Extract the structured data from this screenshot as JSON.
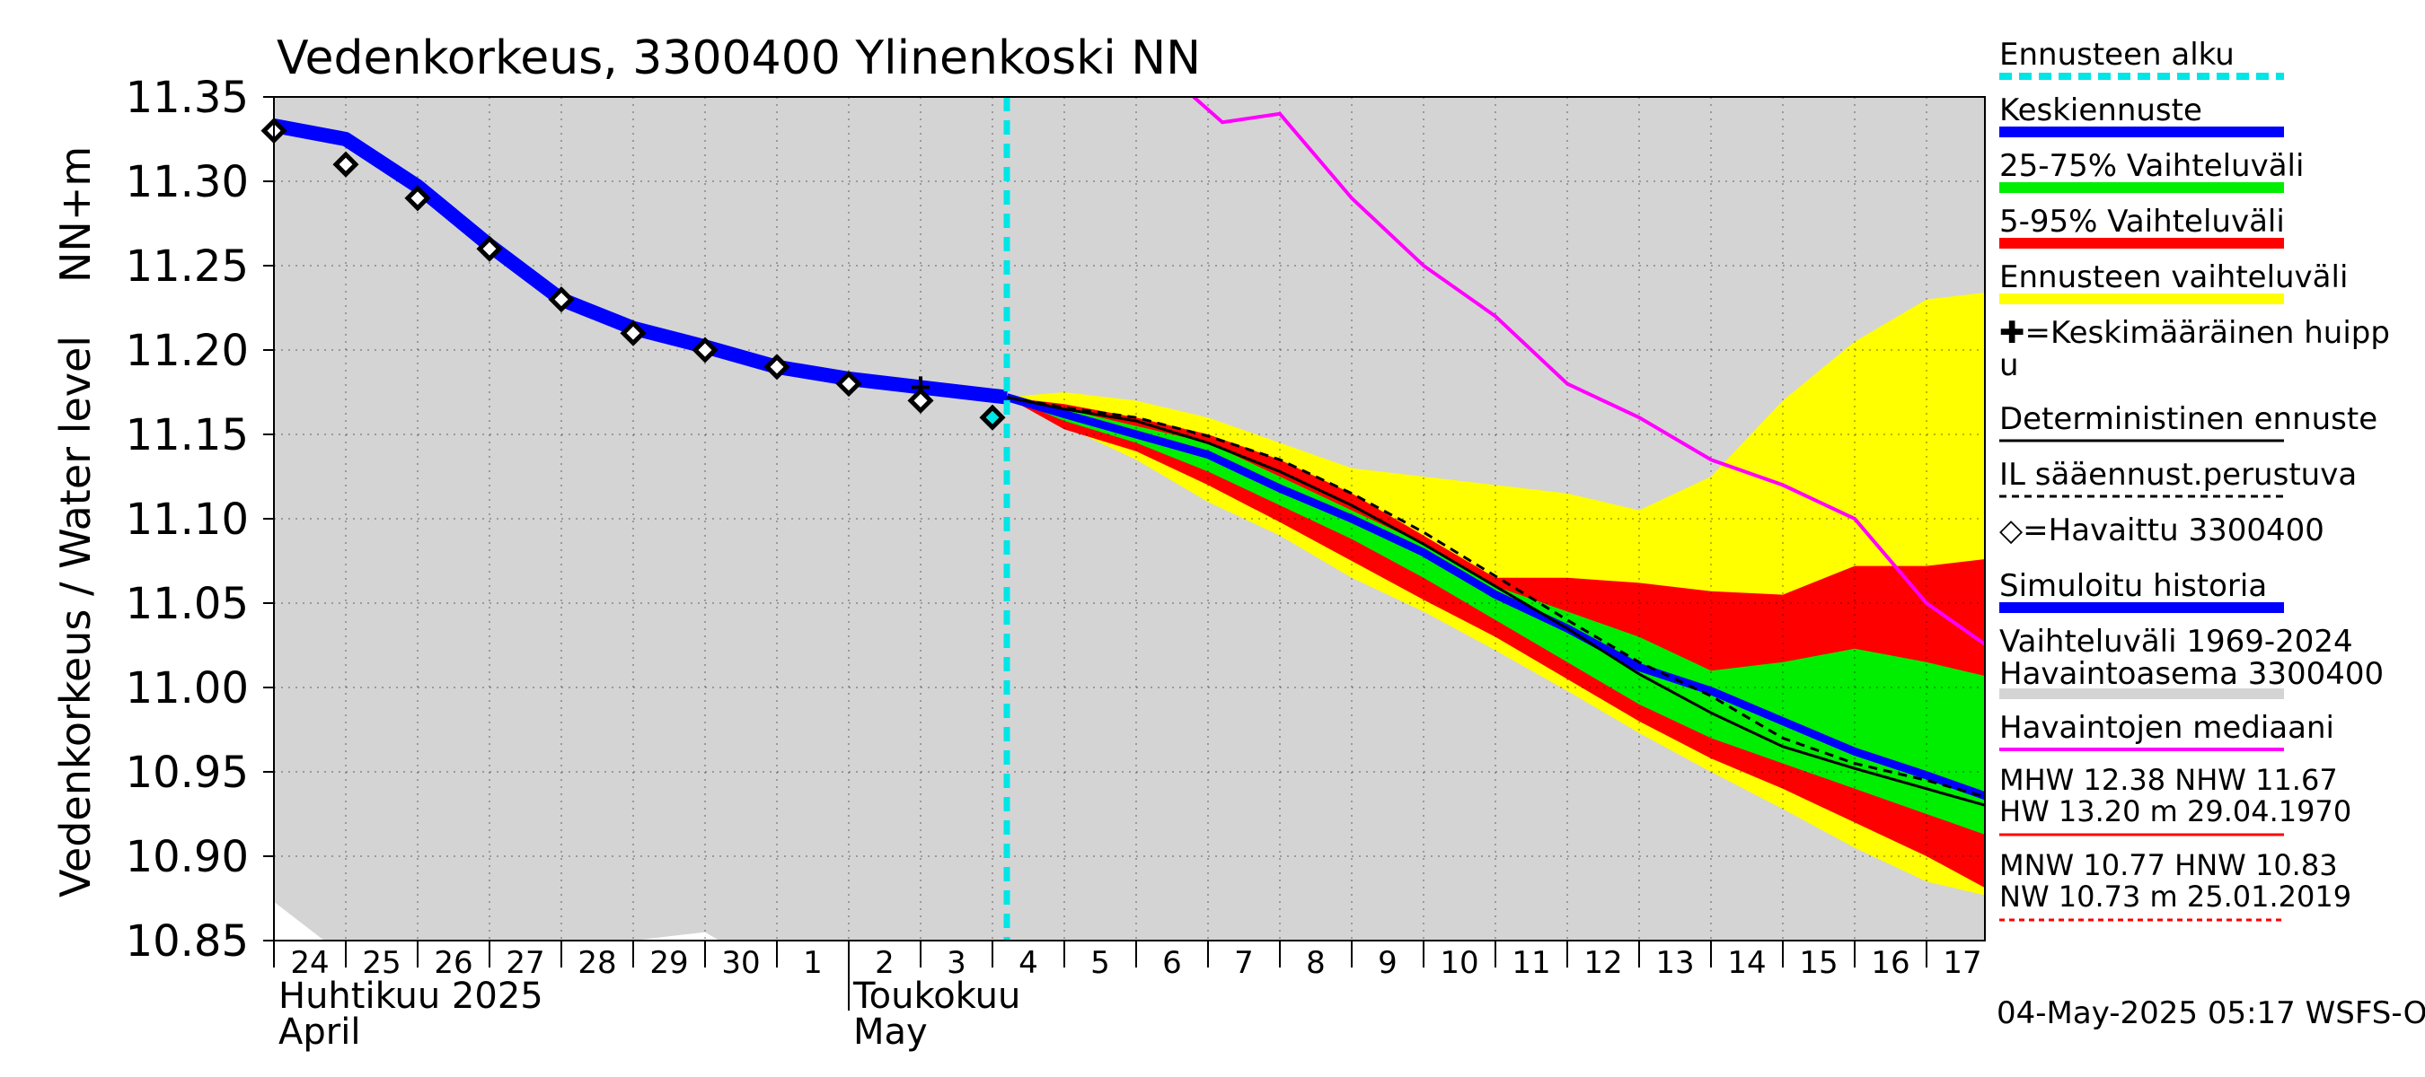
{
  "chart_data": {
    "type": "area",
    "title": "Vedenkorkeus, 3300400 Ylinenkoski NN",
    "ylabel": "Vedenkorkeus / Water level   NN+m",
    "ylabel_main": "Vedenkorkeus / Water level",
    "ylabel_unit": "NN+m",
    "ylim": [
      10.85,
      11.35
    ],
    "yticks": [
      10.85,
      10.9,
      10.95,
      11.0,
      11.05,
      11.1,
      11.15,
      11.2,
      11.25,
      11.3,
      11.35
    ],
    "ytick_labels": [
      "10.85",
      "10.90",
      "10.95",
      "11.00",
      "11.05",
      "11.10",
      "11.15",
      "11.20",
      "11.25",
      "11.30",
      "11.35"
    ],
    "x_range_days": [
      0,
      24
    ],
    "day_note": "x value 0 = 24 April 2025 00:00, 1 unit = 1 day",
    "x_tick_labels": [
      "24",
      "25",
      "26",
      "27",
      "28",
      "29",
      "30",
      "1",
      "2",
      "3",
      "4",
      "5",
      "6",
      "7",
      "8",
      "9",
      "10",
      "11",
      "12",
      "13",
      "14",
      "15",
      "16",
      "17"
    ],
    "month_labels": [
      {
        "fi": "Huhtikuu  2025",
        "en": "April",
        "day": 0
      },
      {
        "fi": "Toukokuu",
        "en": "May",
        "day": 8
      }
    ],
    "forecast_start_day": 10.2,
    "colors": {
      "history_range": "#d4d4d4",
      "forecast_range": "#ffff00",
      "range_5_95": "#ff0000",
      "range_25_75": "#00ee00",
      "mean_forecast": "#0000ff",
      "deterministic": "#000000",
      "median": "#ff00ff",
      "forecast_start": "#00e5e5"
    },
    "series": [
      {
        "name": "Vaihteluväli 1969-2024 Havaintoasema 3300400",
        "kind": "band",
        "x": [
          0,
          24
        ],
        "upper": [
          11.35,
          11.35
        ],
        "lower": [
          10.85,
          10.85
        ]
      },
      {
        "name": "Ennusteen vaihteluväli",
        "kind": "band",
        "x": [
          10.2,
          11,
          12,
          13,
          14,
          15,
          16,
          17,
          18,
          19,
          20,
          21,
          22,
          23,
          24
        ],
        "upper": [
          11.172,
          11.175,
          11.17,
          11.16,
          11.145,
          11.13,
          11.125,
          11.12,
          11.115,
          11.105,
          11.125,
          11.17,
          11.205,
          11.23,
          11.235
        ],
        "lower": [
          11.172,
          11.155,
          11.135,
          11.11,
          11.09,
          11.065,
          11.045,
          11.022,
          10.998,
          10.973,
          10.95,
          10.928,
          10.905,
          10.885,
          10.875
        ]
      },
      {
        "name": "5-95% Vaihteluväli",
        "kind": "band",
        "x": [
          10.2,
          11,
          12,
          13,
          14,
          15,
          16,
          17,
          18,
          19,
          20,
          21,
          22,
          23,
          24
        ],
        "upper": [
          11.172,
          11.168,
          11.16,
          11.15,
          11.135,
          11.115,
          11.09,
          11.065,
          11.065,
          11.062,
          11.057,
          11.055,
          11.072,
          11.072,
          11.077
        ],
        "lower": [
          11.172,
          11.153,
          11.14,
          11.12,
          11.098,
          11.075,
          11.052,
          11.03,
          11.005,
          10.98,
          10.958,
          10.94,
          10.92,
          10.9,
          10.877
        ]
      },
      {
        "name": "25-75% Vaihteluväli",
        "kind": "band",
        "x": [
          10.2,
          11,
          12,
          13,
          14,
          15,
          16,
          17,
          18,
          19,
          20,
          21,
          22,
          23,
          24
        ],
        "upper": [
          11.172,
          11.165,
          11.155,
          11.145,
          11.125,
          11.105,
          11.085,
          11.06,
          11.045,
          11.03,
          11.01,
          11.015,
          11.023,
          11.015,
          11.005
        ],
        "lower": [
          11.172,
          11.158,
          11.145,
          11.128,
          11.108,
          11.088,
          11.065,
          11.04,
          11.015,
          10.99,
          10.97,
          10.955,
          10.94,
          10.925,
          10.91
        ]
      },
      {
        "name": "Havaintojen mediaani",
        "kind": "line",
        "x": [
          12.8,
          13.2,
          14.0,
          15.0,
          16.0,
          17.0,
          18.0,
          19.0,
          20.0,
          21.0,
          22.0,
          23.0,
          24.0
        ],
        "values": [
          11.35,
          11.335,
          11.34,
          11.29,
          11.25,
          11.22,
          11.18,
          11.16,
          11.135,
          11.12,
          11.1,
          11.05,
          11.02
        ]
      },
      {
        "name": "Simuloitu historia",
        "kind": "line",
        "x": [
          0,
          1,
          2,
          3,
          4,
          5,
          6,
          7,
          8,
          9,
          10,
          10.2
        ],
        "values": [
          11.333,
          11.325,
          11.297,
          11.262,
          11.23,
          11.213,
          11.202,
          11.19,
          11.183,
          11.178,
          11.173,
          11.172
        ]
      },
      {
        "name": "Keskiennuste",
        "kind": "line",
        "x": [
          10.2,
          11,
          12,
          13,
          14,
          15,
          16,
          17,
          18,
          19,
          20,
          21,
          22,
          23,
          24
        ],
        "values": [
          11.172,
          11.162,
          11.15,
          11.138,
          11.118,
          11.1,
          11.08,
          11.055,
          11.035,
          11.012,
          10.998,
          10.98,
          10.962,
          10.948,
          10.933
        ]
      },
      {
        "name": "Deterministinen ennuste",
        "kind": "line",
        "x": [
          10.2,
          11,
          12,
          13,
          14,
          15,
          16,
          17,
          18,
          19,
          20,
          21,
          22,
          23,
          24
        ],
        "values": [
          11.172,
          11.165,
          11.158,
          11.145,
          11.128,
          11.108,
          11.085,
          11.06,
          11.035,
          11.008,
          10.985,
          10.965,
          10.952,
          10.94,
          10.928
        ]
      },
      {
        "name": "IL sääennust.perustuva",
        "kind": "line",
        "style": "dashed",
        "x": [
          10.2,
          11,
          12,
          13,
          14,
          15,
          16,
          17,
          18,
          19,
          20,
          21,
          22,
          23,
          24
        ],
        "values": [
          11.172,
          11.166,
          11.16,
          11.149,
          11.135,
          11.115,
          11.092,
          11.066,
          11.04,
          11.015,
          10.995,
          10.97,
          10.955,
          10.945,
          10.933
        ]
      },
      {
        "name": "Havaittu 3300400",
        "kind": "markers",
        "x": [
          0,
          1,
          2,
          3,
          4,
          5,
          6,
          7,
          8,
          9,
          10
        ],
        "values": [
          11.33,
          11.31,
          11.29,
          11.26,
          11.23,
          11.21,
          11.2,
          11.19,
          11.18,
          11.17,
          11.16
        ]
      },
      {
        "name": "Keskimääräinen huippu",
        "kind": "marker",
        "x": [
          9.0
        ],
        "values": [
          11.178
        ]
      }
    ],
    "legend": [
      {
        "label": "Ennusteen alku",
        "key": "cyan-dash"
      },
      {
        "label": "Keskiennuste",
        "key": "blue"
      },
      {
        "label": "25-75% Vaihteluväli",
        "key": "green"
      },
      {
        "label": "5-95% Vaihteluväli",
        "key": "red"
      },
      {
        "label": "Ennusteen vaihteluväli",
        "key": "yellow"
      },
      {
        "label": "✚=Keskimääräinen huipp",
        "label2": "u",
        "key": "none"
      },
      {
        "label": "Deterministinen ennuste",
        "key": "black"
      },
      {
        "label": "IL sääennust.perustuva",
        "key": "black-dash"
      },
      {
        "label": "◇=Havaittu 3300400",
        "key": "none"
      },
      {
        "label": "Simuloitu historia",
        "key": "blue"
      },
      {
        "label": "Vaihteluväli 1969-2024",
        "label2": " Havaintoasema 3300400",
        "key": "grey"
      },
      {
        "label": "Havaintojen mediaani",
        "key": "magenta"
      }
    ],
    "stats": [
      {
        "line1": "MHW  12.38 NHW  11.67",
        "line2": "HW  13.20 m 29.04.1970",
        "key": "red-solid"
      },
      {
        "line1": "MNW  10.77 HNW  10.83",
        "line2": "NW  10.73 m 25.01.2019",
        "key": "red-dash"
      }
    ],
    "footer": "04-May-2025 05:17 WSFS-O"
  }
}
